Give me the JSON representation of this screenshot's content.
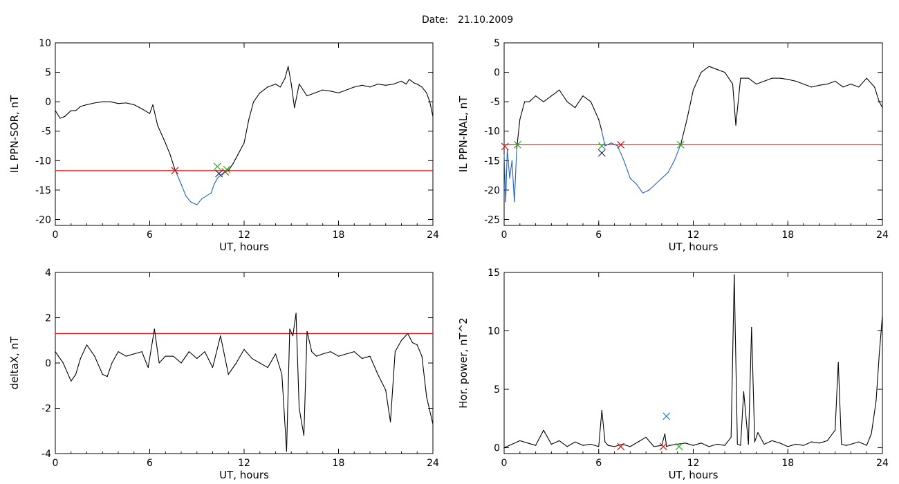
{
  "header": {
    "date_label": "Date:",
    "date_value": "21.10.2009"
  },
  "colors": {
    "background": "#ffffff",
    "trace": "#000000",
    "highlight_trace": "#1f5fbf",
    "threshold": "#ff0000",
    "marker_red": "#d01010",
    "marker_green": "#20b020",
    "marker_blue": "#1a7fd6",
    "marker_dark": "#202060"
  },
  "chart_data": [
    {
      "id": "il-ppn-sor",
      "type": "line",
      "ylabel": "IL PPN-SOR, nT",
      "xlabel": "UT, hours",
      "xlim": [
        0,
        24
      ],
      "ylim": [
        -21,
        10
      ],
      "xticks": [
        "0",
        "6",
        "12",
        "18",
        "24"
      ],
      "yticks": [
        "-20",
        "-15",
        "-10",
        "-5",
        "0",
        "5",
        "10"
      ],
      "threshold": -11.7,
      "highlight_range": [
        7.6,
        10.9
      ],
      "series": [
        {
          "x": [
            0,
            0.3,
            0.6,
            1,
            1.3,
            1.6,
            2,
            2.5,
            3,
            3.5,
            4,
            4.5,
            5,
            5.5,
            6,
            6.2,
            6.5,
            7,
            7.3,
            7.6,
            8,
            8.3,
            8.6,
            9,
            9.3,
            9.6,
            9.9,
            10.1,
            10.3,
            10.5,
            10.7,
            11,
            11.3,
            11.6,
            12,
            12.3,
            12.6,
            13,
            13.5,
            14,
            14.3,
            14.6,
            14.8,
            15,
            15.2,
            15.5,
            16,
            16.5,
            17,
            17.5,
            18,
            18.5,
            19,
            19.5,
            20,
            20.5,
            21,
            21.5,
            22,
            22.3,
            22.5,
            22.8,
            23,
            23.3,
            23.6,
            23.8,
            24
          ],
          "y": [
            -1.5,
            -2.8,
            -2.5,
            -1.5,
            -1.5,
            -0.8,
            -0.5,
            -0.2,
            0,
            0,
            -0.3,
            -0.2,
            -0.5,
            -1.2,
            -2,
            -0.5,
            -4,
            -7,
            -9,
            -11.5,
            -14,
            -16,
            -17,
            -17.5,
            -16.5,
            -16,
            -15.5,
            -14,
            -13,
            -12.5,
            -12,
            -11.7,
            -10.5,
            -9,
            -7,
            -3,
            0,
            1.5,
            2.5,
            3,
            2.5,
            4,
            6,
            3,
            -1,
            3,
            1,
            1.5,
            2,
            1.8,
            1.5,
            2,
            2.5,
            2.8,
            2.5,
            3,
            2.8,
            3,
            3.5,
            3,
            3.8,
            3.2,
            3,
            2.5,
            1.5,
            0,
            -2.5
          ]
        }
      ],
      "markers": [
        {
          "x": 7.6,
          "y": -11.7,
          "color": "red"
        },
        {
          "x": 10.3,
          "y": -11.0,
          "color": "green"
        },
        {
          "x": 10.4,
          "y": -12.2,
          "color": "dark"
        },
        {
          "x": 10.8,
          "y": -11.9,
          "color": "red"
        },
        {
          "x": 10.9,
          "y": -11.5,
          "color": "green"
        }
      ]
    },
    {
      "id": "il-ppn-nal",
      "type": "line",
      "ylabel": "IL PPN-NAL, nT",
      "xlabel": "UT, hours",
      "xlim": [
        0,
        24
      ],
      "ylim": [
        -26,
        5
      ],
      "xticks": [
        "0",
        "6",
        "12",
        "18",
        "24"
      ],
      "yticks": [
        "-25",
        "-20",
        "-15",
        "-10",
        "-5",
        "0",
        "5"
      ],
      "threshold": -12.3,
      "highlight_ranges": [
        [
          0,
          0.8
        ],
        [
          6.2,
          11.2
        ]
      ],
      "series": [
        {
          "x": [
            0,
            0.1,
            0.2,
            0.35,
            0.5,
            0.65,
            0.8,
            1,
            1.3,
            1.6,
            2,
            2.5,
            3,
            3.5,
            4,
            4.5,
            5,
            5.5,
            6,
            6.2,
            6.4,
            6.8,
            7.2,
            7.6,
            8,
            8.4,
            8.8,
            9.2,
            9.6,
            10,
            10.4,
            10.8,
            11.2,
            11.6,
            12,
            12.5,
            13,
            13.5,
            14,
            14.5,
            14.7,
            15,
            15.5,
            16,
            16.5,
            17,
            17.5,
            18,
            18.5,
            19,
            19.5,
            20,
            20.5,
            21,
            21.5,
            22,
            22.5,
            23,
            23.5,
            23.8,
            24
          ],
          "y": [
            -14,
            -22,
            -13,
            -18,
            -15,
            -22,
            -13,
            -8,
            -5,
            -5,
            -4,
            -5,
            -4,
            -3,
            -5,
            -6,
            -4,
            -5,
            -8,
            -10,
            -12.5,
            -12,
            -12.5,
            -15,
            -18,
            -19,
            -20.5,
            -20,
            -19,
            -18,
            -17,
            -15,
            -12.3,
            -8,
            -3,
            0,
            1,
            0.5,
            0,
            -2,
            -9,
            -1,
            -1,
            -2,
            -1.5,
            -1,
            -1,
            -1.2,
            -1.5,
            -2,
            -2.5,
            -2.2,
            -2,
            -1.5,
            -2.5,
            -2,
            -2.5,
            -1,
            -2.5,
            -5,
            -6
          ]
        }
      ],
      "markers": [
        {
          "x": 0.05,
          "y": -12.6,
          "color": "red"
        },
        {
          "x": 0.85,
          "y": -12.3,
          "color": "green"
        },
        {
          "x": 6.2,
          "y": -13.7,
          "color": "dark"
        },
        {
          "x": 6.2,
          "y": -12.5,
          "color": "green"
        },
        {
          "x": 7.4,
          "y": -12.3,
          "color": "red"
        },
        {
          "x": 11.2,
          "y": -12.3,
          "color": "green"
        }
      ]
    },
    {
      "id": "delta-x",
      "type": "line",
      "ylabel": "deltaX, nT",
      "xlabel": "UT, hours",
      "xlim": [
        0,
        24
      ],
      "ylim": [
        -4,
        4
      ],
      "xticks": [
        "0",
        "6",
        "12",
        "18",
        "24"
      ],
      "yticks": [
        "-4",
        "-2",
        "0",
        "2",
        "4"
      ],
      "threshold": 1.3,
      "series": [
        {
          "x": [
            0,
            0.5,
            1,
            1.3,
            1.6,
            2,
            2.5,
            3,
            3.3,
            3.6,
            4,
            4.5,
            5,
            5.5,
            5.9,
            6.3,
            6.6,
            7,
            7.5,
            8,
            8.5,
            9,
            9.5,
            10,
            10.5,
            11,
            11.5,
            12,
            12.5,
            13,
            13.5,
            14,
            14.4,
            14.7,
            14.9,
            15.1,
            15.3,
            15.5,
            15.8,
            16,
            16.3,
            16.6,
            17,
            17.5,
            18,
            18.5,
            19,
            19.5,
            20,
            20.5,
            21,
            21.3,
            21.6,
            22,
            22.4,
            22.7,
            23,
            23.3,
            23.6,
            24
          ],
          "y": [
            0.5,
            0,
            -0.8,
            -0.5,
            0.2,
            0.8,
            0.3,
            -0.5,
            -0.6,
            0,
            0.5,
            0.3,
            0.4,
            0.5,
            -0.2,
            1.5,
            0,
            0.3,
            0.3,
            0,
            0.5,
            0.2,
            0.5,
            -0.2,
            1.2,
            -0.5,
            0,
            0.6,
            0.2,
            0,
            -0.2,
            0.4,
            -0.5,
            -3.9,
            1.5,
            1.2,
            2.2,
            -2,
            -3.2,
            1.4,
            0.5,
            0.3,
            0.4,
            0.5,
            0.3,
            0.4,
            0.5,
            0.2,
            0.3,
            -0.5,
            -1.2,
            -2.6,
            0.5,
            1,
            1.3,
            0.9,
            0.8,
            0.3,
            -1.5,
            -2.7
          ]
        }
      ]
    },
    {
      "id": "hor-power",
      "type": "line",
      "ylabel": "Hor. power, nT^2",
      "xlabel": "UT, hours",
      "xlim": [
        0,
        24
      ],
      "ylim": [
        -0.5,
        15
      ],
      "xticks": [
        "0",
        "6",
        "12",
        "18",
        "24"
      ],
      "yticks": [
        "0",
        "5",
        "10",
        "15"
      ],
      "series": [
        {
          "x": [
            0,
            0.5,
            1,
            1.5,
            2,
            2.5,
            3,
            3.5,
            4,
            4.5,
            5,
            5.5,
            6,
            6.2,
            6.4,
            6.6,
            7,
            7.5,
            8,
            8.5,
            9,
            9.5,
            10,
            10.2,
            10.3,
            10.5,
            11,
            11.5,
            12,
            12.5,
            13,
            13.5,
            14,
            14.4,
            14.6,
            14.8,
            15,
            15.2,
            15.5,
            15.7,
            15.9,
            16.1,
            16.5,
            17,
            17.5,
            18,
            18.5,
            19,
            19.5,
            20,
            20.5,
            21,
            21.2,
            21.4,
            21.7,
            22,
            22.5,
            23,
            23.3,
            23.6,
            23.8,
            24
          ],
          "y": [
            0,
            0.3,
            0.6,
            0.4,
            0.2,
            1.5,
            0.3,
            0.6,
            0.1,
            0.5,
            0.2,
            0.3,
            0.1,
            3.2,
            0.5,
            0.2,
            0.1,
            0.3,
            0.1,
            0.5,
            0.9,
            0.1,
            0.2,
            1.2,
            0.1,
            0.2,
            0.3,
            0.4,
            0.2,
            0.4,
            0.1,
            0.3,
            0.2,
            0.9,
            14.8,
            0.3,
            0.2,
            4.8,
            0.3,
            10.3,
            0.5,
            1.3,
            0.3,
            0.6,
            0.4,
            0.1,
            0.3,
            0.2,
            0.5,
            0.4,
            0.6,
            1.5,
            7.3,
            0.3,
            0.2,
            0.3,
            0.5,
            0.2,
            1.2,
            4,
            8,
            11.3
          ]
        }
      ],
      "markers": [
        {
          "x": 7.4,
          "y": 0.1,
          "color": "red"
        },
        {
          "x": 10.1,
          "y": 0.1,
          "color": "red"
        },
        {
          "x": 10.3,
          "y": 2.7,
          "color": "blue"
        },
        {
          "x": 11.1,
          "y": 0.1,
          "color": "green"
        }
      ]
    }
  ]
}
